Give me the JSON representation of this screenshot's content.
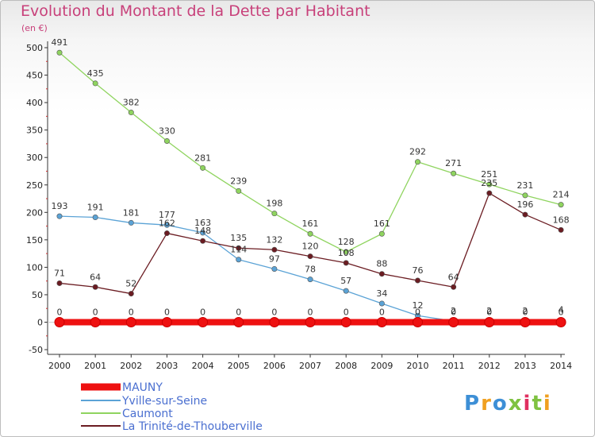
{
  "title": "Evolution du Montant de la Dette par Habitant",
  "subtitle": "(en €)",
  "brand": "Proxiti",
  "chart_data": {
    "type": "line",
    "x": [
      "2000",
      "2001",
      "2002",
      "2003",
      "2004",
      "2005",
      "2006",
      "2007",
      "2008",
      "2009",
      "2010",
      "2011",
      "2012",
      "2013",
      "2014"
    ],
    "ylim": [
      -50,
      500
    ],
    "yticks": [
      -50,
      0,
      50,
      100,
      150,
      200,
      250,
      300,
      350,
      400,
      450,
      500
    ],
    "grid": false,
    "legend_position": "bottom-left",
    "series": [
      {
        "name": "MAUNY",
        "color": "#ee1111",
        "values": [
          0,
          0,
          0,
          0,
          0,
          0,
          0,
          0,
          0,
          0,
          0,
          0,
          0,
          0,
          0
        ]
      },
      {
        "name": "Yville-sur-Seine",
        "color": "#5ba3d6",
        "values": [
          193,
          191,
          181,
          177,
          163,
          114,
          97,
          78,
          57,
          34,
          12,
          2,
          2,
          2,
          4
        ]
      },
      {
        "name": "Caumont",
        "color": "#8fd45f",
        "values": [
          491,
          435,
          382,
          330,
          281,
          239,
          198,
          161,
          128,
          161,
          292,
          271,
          251,
          231,
          214
        ]
      },
      {
        "name": "La Trinité-de-Thouberville",
        "color": "#6b1c22",
        "values": [
          71,
          64,
          52,
          162,
          148,
          135,
          132,
          120,
          108,
          88,
          76,
          64,
          235,
          196,
          168
        ]
      }
    ]
  }
}
